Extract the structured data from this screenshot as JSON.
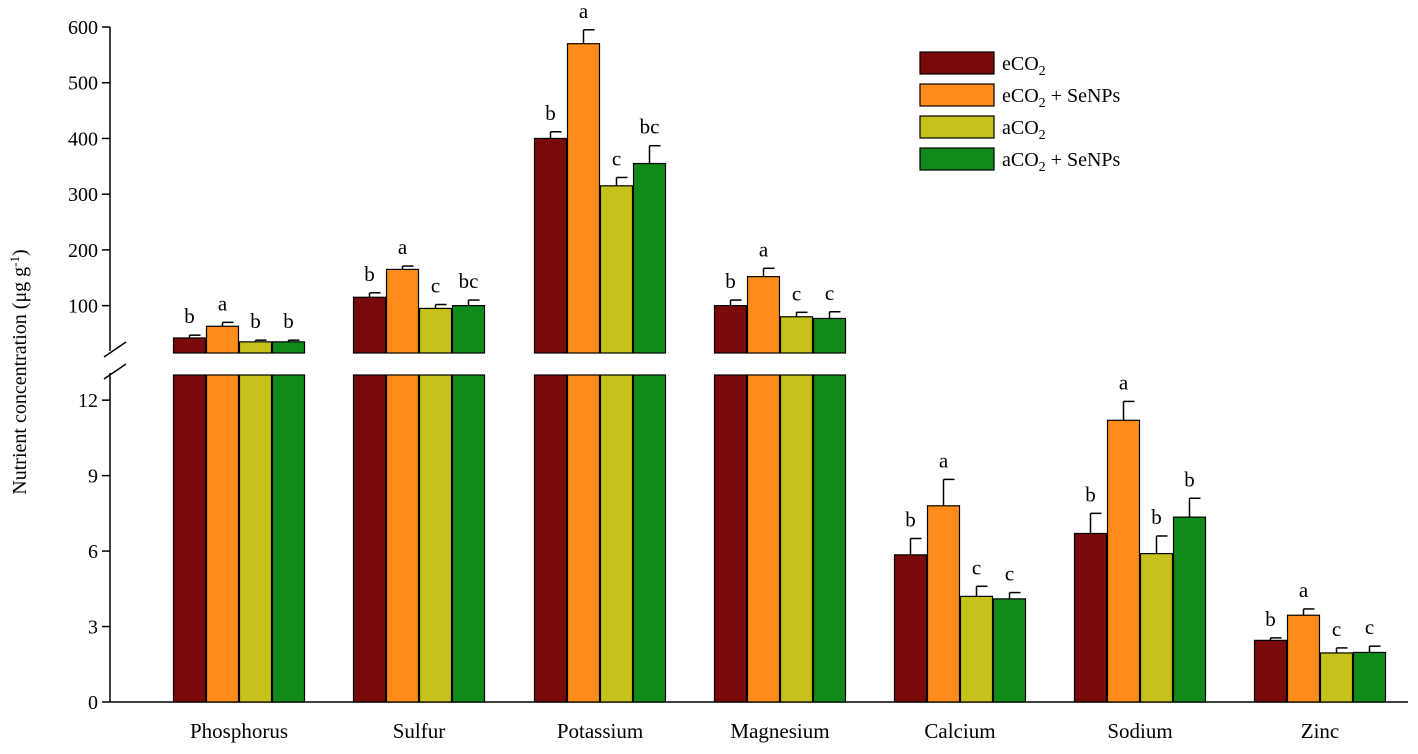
{
  "chart_data": {
    "type": "bar",
    "title": "",
    "xlabel": "",
    "ylabel": "Nutrient concentration (µg g⁻¹)",
    "ylabel_parts": {
      "main": "Nutrient concentration (μg g",
      "sup": "-1",
      "end": ")"
    },
    "axis_break": true,
    "upper_axis": {
      "ylim": [
        15,
        600
      ],
      "ticks": [
        100,
        200,
        300,
        400,
        500,
        600
      ]
    },
    "lower_axis": {
      "ylim": [
        0,
        13
      ],
      "ticks": [
        0,
        3,
        6,
        9,
        12
      ]
    },
    "broken_categories": [
      "Phosphorus",
      "Sulfur",
      "Potassium",
      "Magnesium"
    ],
    "categories": [
      "Phosphorus",
      "Sulfur",
      "Potassium",
      "Magnesium",
      "Calcium",
      "Sodium",
      "Zinc"
    ],
    "series": [
      {
        "name": "eCO2",
        "label": "eCO",
        "sub": "2",
        "suffix": "",
        "color": "#7a0a0a",
        "values": [
          42,
          115,
          400,
          100,
          5.85,
          6.7,
          2.45
        ],
        "errors": [
          5,
          8,
          12,
          10,
          0.65,
          0.8,
          0.1
        ],
        "letters": [
          "b",
          "b",
          "b",
          "b",
          "b",
          "b",
          "b"
        ]
      },
      {
        "name": "eCO2 + SeNPs",
        "label": "eCO",
        "sub": "2",
        "suffix": " + SeNPs",
        "color": "#ff8c1a",
        "values": [
          63,
          165,
          570,
          152,
          7.8,
          11.2,
          3.45
        ],
        "errors": [
          7,
          6,
          25,
          15,
          1.05,
          0.75,
          0.25
        ],
        "letters": [
          "a",
          "a",
          "a",
          "a",
          "a",
          "a",
          "a"
        ]
      },
      {
        "name": "aCO2",
        "label": "aCO",
        "sub": "2",
        "suffix": "",
        "color": "#c5c21b",
        "values": [
          35,
          95,
          315,
          80,
          4.2,
          5.9,
          1.95
        ],
        "errors": [
          3,
          7,
          15,
          8,
          0.4,
          0.7,
          0.2
        ],
        "letters": [
          "b",
          "c",
          "c",
          "c",
          "c",
          "b",
          "c"
        ]
      },
      {
        "name": "aCO2 + SeNPs",
        "label": "aCO",
        "sub": "2",
        "suffix": " + SeNPs",
        "color": "#108a1a",
        "values": [
          35,
          100,
          355,
          77,
          4.1,
          7.35,
          1.97
        ],
        "errors": [
          3,
          10,
          32,
          12,
          0.25,
          0.75,
          0.25
        ],
        "letters": [
          "b",
          "bc",
          "bc",
          "c",
          "c",
          "b",
          "c"
        ]
      }
    ],
    "legend": {
      "position": "top-right"
    },
    "grid": false
  }
}
